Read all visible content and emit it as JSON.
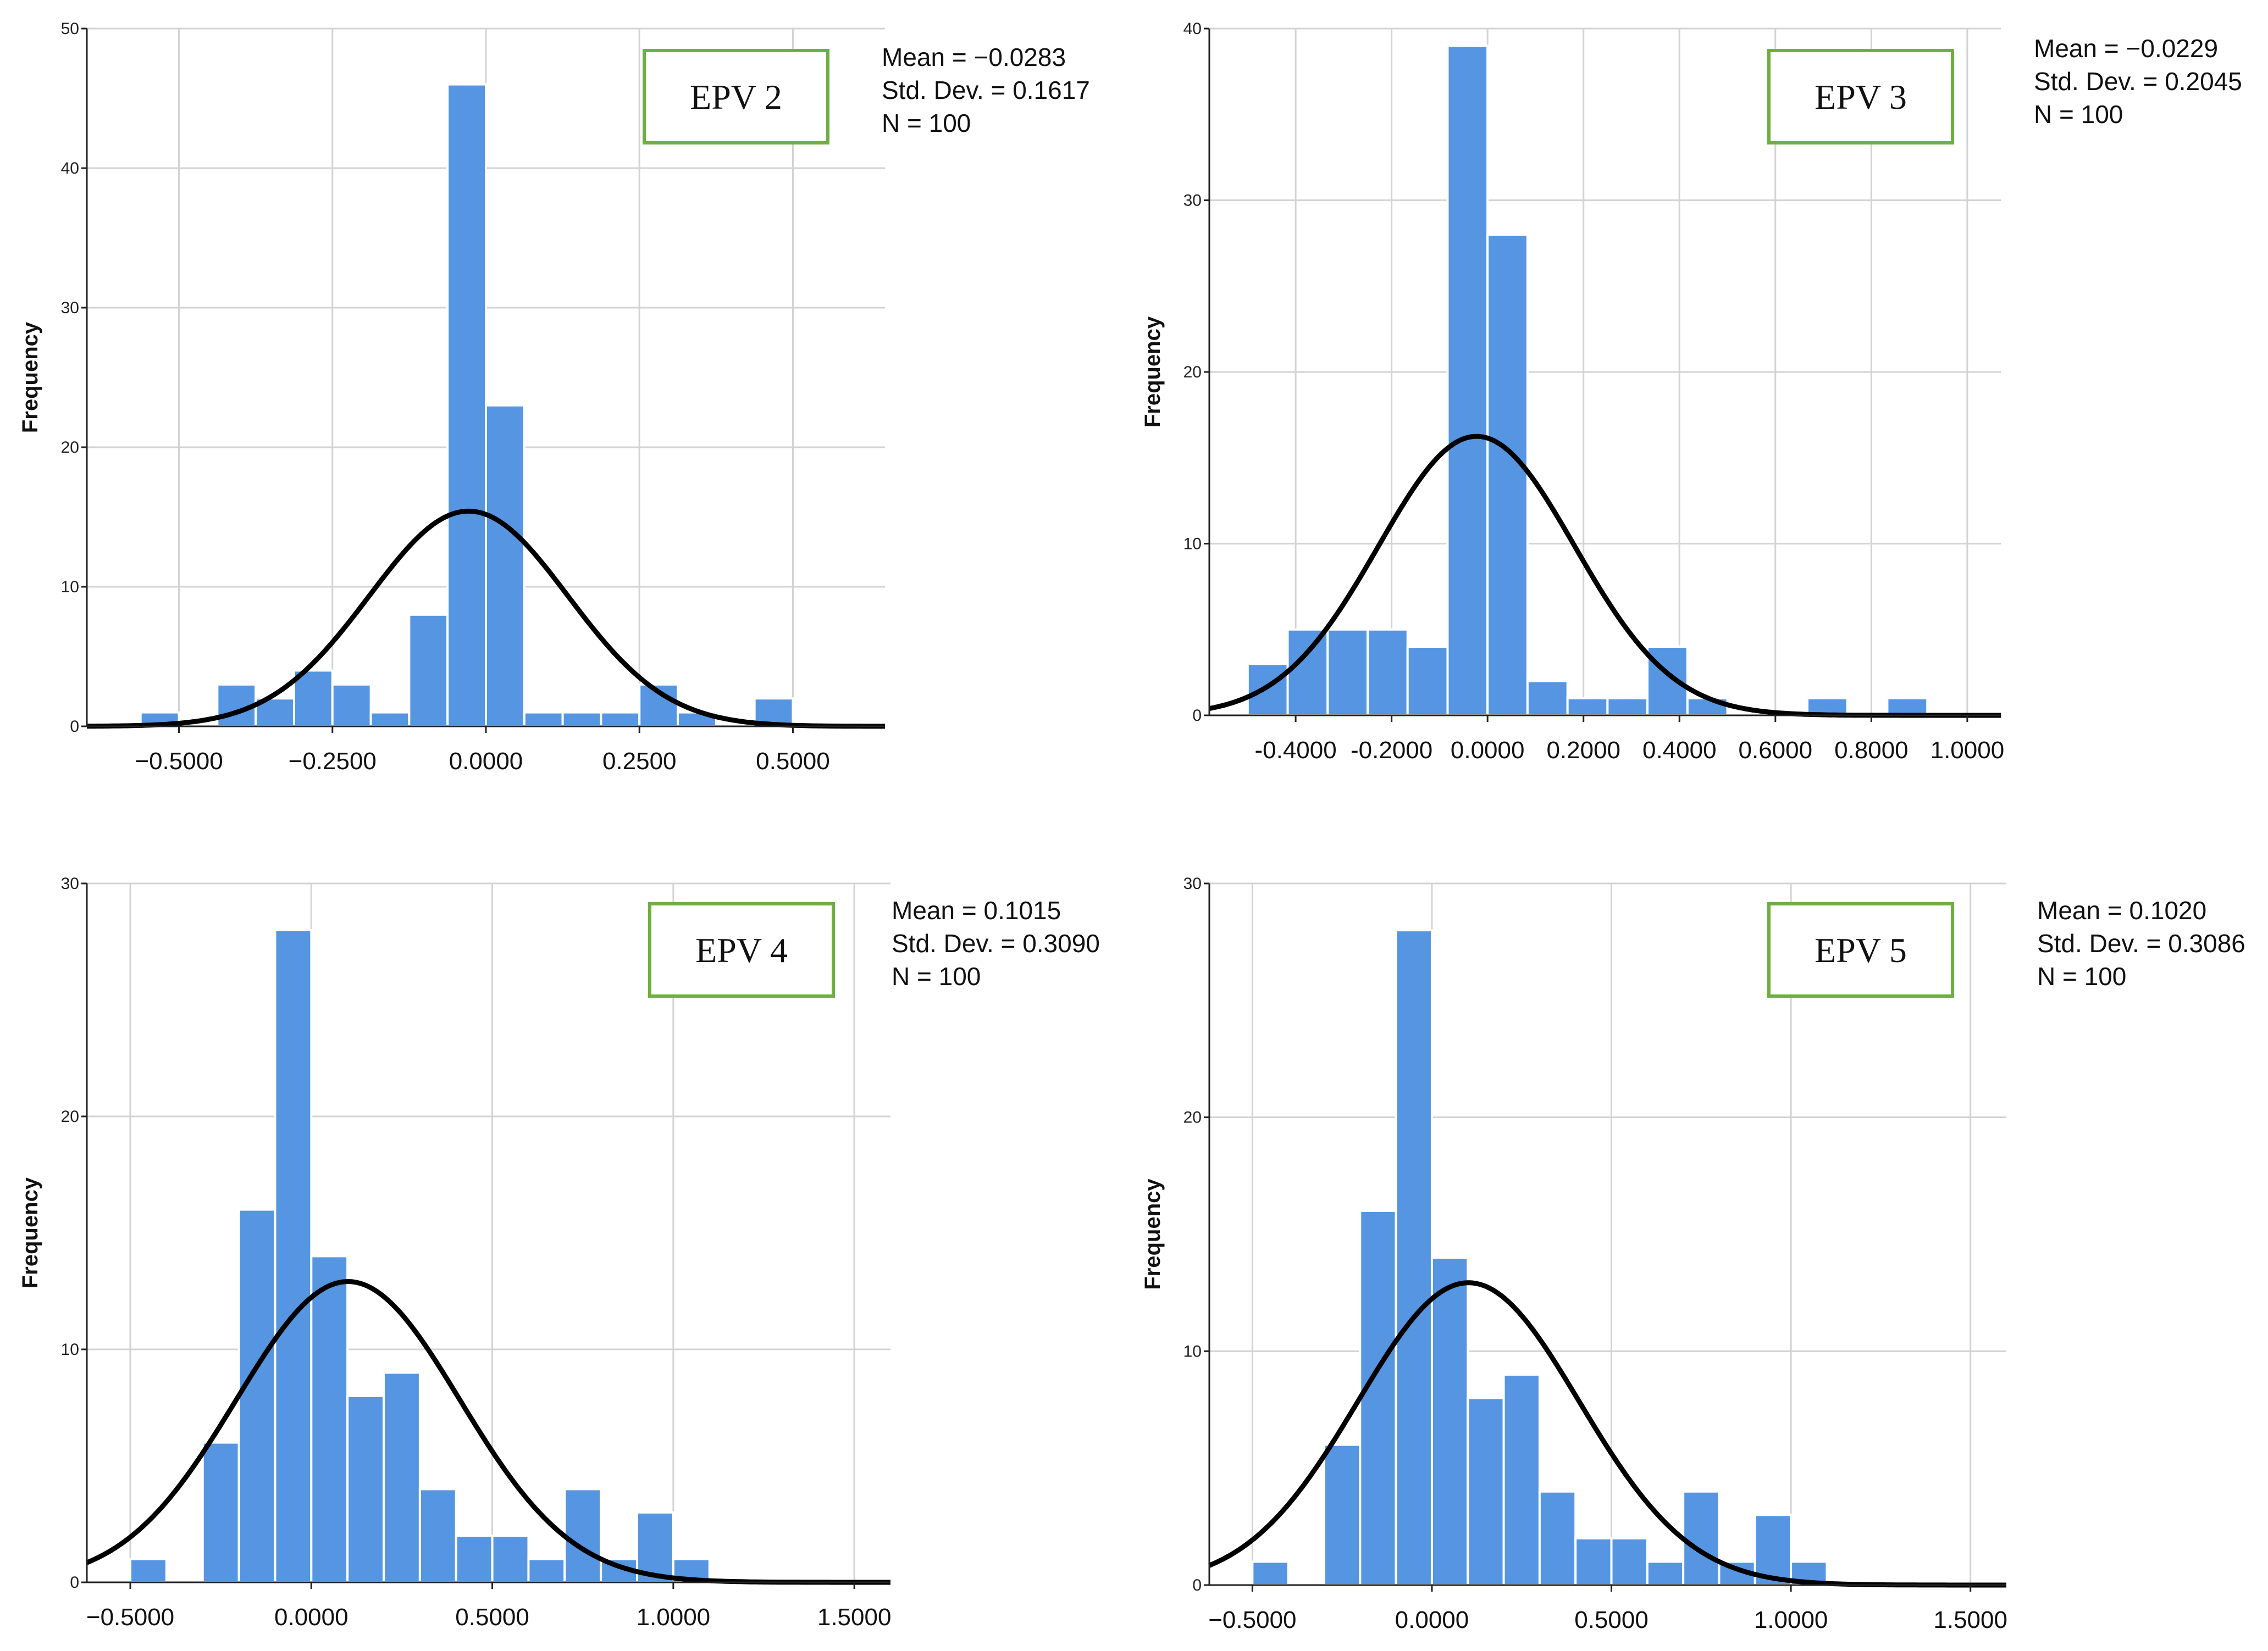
{
  "colors": {
    "bar": "#5595E2",
    "bar_edge": "#ffffff",
    "curve": "#000000",
    "grid": "#D3D3D3",
    "axis": "#222222",
    "label_box_border": "#6FAE45"
  },
  "chart_data": [
    {
      "type": "bar",
      "chart_type": "histogram",
      "overlay": "normal curve",
      "label": "EPV 2",
      "stats": [
        "Mean = −0.0283",
        "Std. Dev. = 0.1617",
        "N = 100"
      ],
      "mean": -0.0283,
      "std": 0.1617,
      "n": 100,
      "ylabel": "Frequency",
      "xlim": [
        -0.65,
        0.65
      ],
      "ylim": [
        0,
        50
      ],
      "yticks": [
        0,
        10,
        20,
        30,
        40,
        50
      ],
      "xticks": [
        -0.5,
        -0.25,
        0,
        0.25,
        0.5
      ],
      "xtick_labels": [
        "−0.5000",
        "−0.2500",
        "0.0000",
        "0.2500",
        "0.5000"
      ],
      "grid": true,
      "bin_width": 0.0625,
      "bins": [
        {
          "x0": -0.5625,
          "x1": -0.5,
          "count": 1
        },
        {
          "x0": -0.4375,
          "x1": -0.375,
          "count": 3
        },
        {
          "x0": -0.375,
          "x1": -0.3125,
          "count": 2
        },
        {
          "x0": -0.3125,
          "x1": -0.25,
          "count": 4
        },
        {
          "x0": -0.25,
          "x1": -0.1875,
          "count": 3
        },
        {
          "x0": -0.1875,
          "x1": -0.125,
          "count": 1
        },
        {
          "x0": -0.125,
          "x1": -0.0625,
          "count": 8
        },
        {
          "x0": -0.0625,
          "x1": 0.0,
          "count": 46
        },
        {
          "x0": 0.0,
          "x1": 0.0625,
          "count": 23
        },
        {
          "x0": 0.0625,
          "x1": 0.125,
          "count": 1
        },
        {
          "x0": 0.125,
          "x1": 0.1875,
          "count": 1
        },
        {
          "x0": 0.1875,
          "x1": 0.25,
          "count": 1
        },
        {
          "x0": 0.25,
          "x1": 0.3125,
          "count": 3
        },
        {
          "x0": 0.3125,
          "x1": 0.375,
          "count": 1
        },
        {
          "x0": 0.4375,
          "x1": 0.5,
          "count": 2
        }
      ]
    },
    {
      "type": "bar",
      "chart_type": "histogram",
      "overlay": "normal curve",
      "label": "EPV 3",
      "stats": [
        "Mean = −0.0229",
        "Std. Dev. = 0.2045",
        "N = 100"
      ],
      "mean": -0.0229,
      "std": 0.2045,
      "n": 100,
      "ylabel": "Frequency",
      "xlim": [
        -0.58,
        1.07
      ],
      "ylim": [
        0,
        40
      ],
      "yticks": [
        0,
        10,
        20,
        30,
        40
      ],
      "xticks": [
        -0.4,
        -0.2,
        0,
        0.2,
        0.4,
        0.6,
        0.8,
        1.0
      ],
      "xtick_labels": [
        "-0.4000",
        "-0.2000",
        "0.0000",
        "0.2000",
        "0.4000",
        "0.6000",
        "0.8000",
        "1.0000"
      ],
      "grid": true,
      "bin_width": 0.0833,
      "bins": [
        {
          "x0": -0.5,
          "x1": -0.4167,
          "count": 3
        },
        {
          "x0": -0.4167,
          "x1": -0.3333,
          "count": 5
        },
        {
          "x0": -0.3333,
          "x1": -0.25,
          "count": 5
        },
        {
          "x0": -0.25,
          "x1": -0.1667,
          "count": 5
        },
        {
          "x0": -0.1667,
          "x1": -0.0833,
          "count": 4
        },
        {
          "x0": -0.0833,
          "x1": 0.0,
          "count": 39
        },
        {
          "x0": 0.0,
          "x1": 0.0833,
          "count": 28
        },
        {
          "x0": 0.0833,
          "x1": 0.1667,
          "count": 2
        },
        {
          "x0": 0.1667,
          "x1": 0.25,
          "count": 1
        },
        {
          "x0": 0.25,
          "x1": 0.3333,
          "count": 1
        },
        {
          "x0": 0.3333,
          "x1": 0.4167,
          "count": 4
        },
        {
          "x0": 0.4167,
          "x1": 0.5,
          "count": 1
        },
        {
          "x0": 0.6667,
          "x1": 0.75,
          "count": 1
        },
        {
          "x0": 0.8333,
          "x1": 0.9167,
          "count": 1
        }
      ]
    },
    {
      "type": "bar",
      "chart_type": "histogram",
      "overlay": "normal curve",
      "label": "EPV 4",
      "stats": [
        "Mean = 0.1015",
        "Std. Dev. = 0.3090",
        "N = 100"
      ],
      "mean": 0.1015,
      "std": 0.309,
      "n": 100,
      "ylabel": "Frequency",
      "xlim": [
        -0.62,
        1.6
      ],
      "ylim": [
        0,
        30
      ],
      "yticks": [
        0,
        10,
        20,
        30
      ],
      "xticks": [
        -0.5,
        0,
        0.5,
        1.0,
        1.5
      ],
      "xtick_labels": [
        "−0.5000",
        "0.0000",
        "0.5000",
        "1.0000",
        "1.5000"
      ],
      "grid": true,
      "bin_width": 0.1,
      "bins": [
        {
          "x0": -0.5,
          "x1": -0.4,
          "count": 1
        },
        {
          "x0": -0.3,
          "x1": -0.2,
          "count": 6
        },
        {
          "x0": -0.2,
          "x1": -0.1,
          "count": 16
        },
        {
          "x0": -0.1,
          "x1": 0.0,
          "count": 28
        },
        {
          "x0": 0.0,
          "x1": 0.1,
          "count": 14
        },
        {
          "x0": 0.1,
          "x1": 0.2,
          "count": 8
        },
        {
          "x0": 0.2,
          "x1": 0.3,
          "count": 9
        },
        {
          "x0": 0.3,
          "x1": 0.4,
          "count": 4
        },
        {
          "x0": 0.4,
          "x1": 0.5,
          "count": 2
        },
        {
          "x0": 0.5,
          "x1": 0.6,
          "count": 2
        },
        {
          "x0": 0.6,
          "x1": 0.7,
          "count": 1
        },
        {
          "x0": 0.7,
          "x1": 0.8,
          "count": 4
        },
        {
          "x0": 0.8,
          "x1": 0.9,
          "count": 1
        },
        {
          "x0": 0.9,
          "x1": 1.0,
          "count": 3
        },
        {
          "x0": 1.0,
          "x1": 1.1,
          "count": 1
        }
      ]
    },
    {
      "type": "bar",
      "chart_type": "histogram",
      "overlay": "normal curve",
      "label": "EPV 5",
      "stats": [
        "Mean = 0.1020",
        "Std. Dev. = 0.3086",
        "N = 100"
      ],
      "mean": 0.102,
      "std": 0.3086,
      "n": 100,
      "ylabel": "Frequency",
      "xlim": [
        -0.62,
        1.6
      ],
      "ylim": [
        0,
        30
      ],
      "yticks": [
        0,
        10,
        20,
        30
      ],
      "xticks": [
        -0.5,
        0,
        0.5,
        1.0,
        1.5
      ],
      "xtick_labels": [
        "−0.5000",
        "0.0000",
        "0.5000",
        "1.0000",
        "1.5000"
      ],
      "grid": true,
      "bin_width": 0.1,
      "bins": [
        {
          "x0": -0.5,
          "x1": -0.4,
          "count": 1
        },
        {
          "x0": -0.3,
          "x1": -0.2,
          "count": 6
        },
        {
          "x0": -0.2,
          "x1": -0.1,
          "count": 16
        },
        {
          "x0": -0.1,
          "x1": 0.0,
          "count": 28
        },
        {
          "x0": 0.0,
          "x1": 0.1,
          "count": 14
        },
        {
          "x0": 0.1,
          "x1": 0.2,
          "count": 8
        },
        {
          "x0": 0.2,
          "x1": 0.3,
          "count": 9
        },
        {
          "x0": 0.3,
          "x1": 0.4,
          "count": 4
        },
        {
          "x0": 0.4,
          "x1": 0.5,
          "count": 2
        },
        {
          "x0": 0.5,
          "x1": 0.6,
          "count": 2
        },
        {
          "x0": 0.6,
          "x1": 0.7,
          "count": 1
        },
        {
          "x0": 0.7,
          "x1": 0.8,
          "count": 4
        },
        {
          "x0": 0.8,
          "x1": 0.9,
          "count": 1
        },
        {
          "x0": 0.9,
          "x1": 1.0,
          "count": 3
        },
        {
          "x0": 1.0,
          "x1": 1.1,
          "count": 1
        }
      ]
    }
  ]
}
